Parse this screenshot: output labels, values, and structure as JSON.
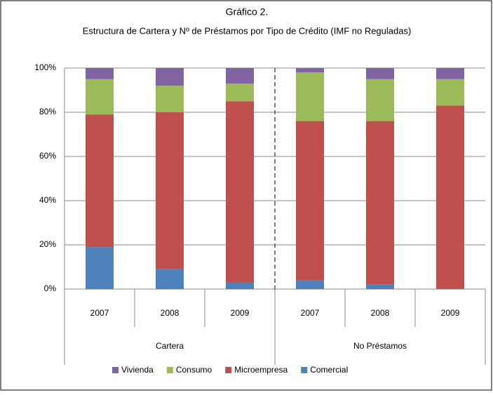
{
  "chart_data": {
    "type": "stacked_bar",
    "title": "Gráfico 2.",
    "subtitle": "Estructura de Cartera y Nº de Préstamos por Tipo de Crédito (IMF no Reguladas)",
    "groups": [
      {
        "name": "Cartera",
        "categories": [
          "2007",
          "2008",
          "2009"
        ]
      },
      {
        "name": "No Préstamos",
        "categories": [
          "2007",
          "2008",
          "2009"
        ]
      }
    ],
    "series": [
      {
        "name": "Comercial",
        "color": "#4f81bd",
        "values": [
          19,
          9,
          3,
          4,
          2,
          0
        ]
      },
      {
        "name": "Microempresa",
        "color": "#c0504d",
        "values": [
          60,
          71,
          82,
          72,
          74,
          83
        ]
      },
      {
        "name": "Consumo",
        "color": "#9bbb59",
        "values": [
          16,
          12,
          8,
          22,
          19,
          12
        ]
      },
      {
        "name": "Vivienda",
        "color": "#8064a2",
        "values": [
          5,
          8,
          7,
          2,
          5,
          5
        ]
      }
    ],
    "ylim": [
      0,
      100
    ],
    "yticks": [
      {
        "value": 0,
        "label": "0%"
      },
      {
        "value": 20,
        "label": "20%"
      },
      {
        "value": 40,
        "label": "40%"
      },
      {
        "value": 60,
        "label": "60%"
      },
      {
        "value": 80,
        "label": "80%"
      },
      {
        "value": 100,
        "label": "100%"
      }
    ],
    "grid": true,
    "legend": "bottom"
  }
}
